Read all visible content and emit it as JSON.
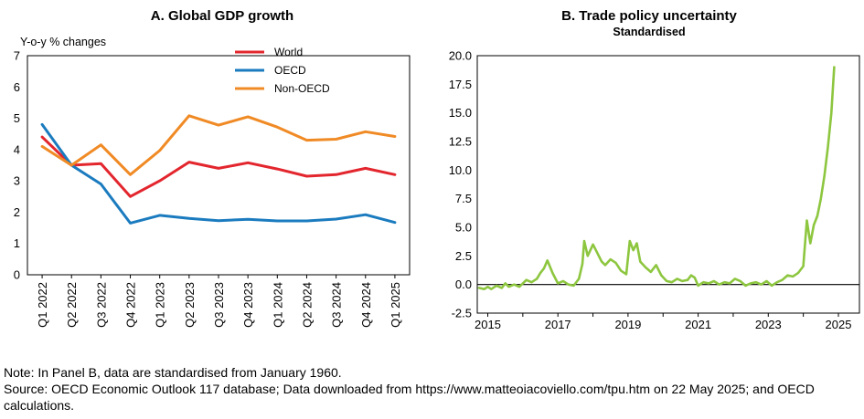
{
  "chart_data": [
    {
      "type": "line",
      "title": "A. Global GDP growth",
      "ylabel": "Y-o-y % changes",
      "ylim": [
        0,
        7
      ],
      "yticks": [
        "0",
        "1",
        "2",
        "3",
        "4",
        "5",
        "6",
        "7"
      ],
      "categories": [
        "Q1 2022",
        "Q2 2022",
        "Q3 2022",
        "Q4 2022",
        "Q1 2023",
        "Q2 2023",
        "Q3 2023",
        "Q4 2023",
        "Q1 2024",
        "Q2 2024",
        "Q3 2024",
        "Q4 2024",
        "Q1 2025"
      ],
      "legend_position": "top-center",
      "series": [
        {
          "name": "World",
          "color": "#E3262E",
          "values": [
            4.4,
            3.5,
            3.55,
            2.5,
            3.0,
            3.6,
            3.4,
            3.58,
            3.38,
            3.15,
            3.2,
            3.4,
            3.2
          ]
        },
        {
          "name": "OECD",
          "color": "#1B7BBF",
          "values": [
            4.8,
            3.5,
            2.9,
            1.65,
            1.9,
            1.8,
            1.73,
            1.77,
            1.72,
            1.72,
            1.78,
            1.92,
            1.67
          ]
        },
        {
          "name": "Non-OECD",
          "color": "#F08A25",
          "values": [
            4.1,
            3.5,
            4.15,
            3.2,
            3.97,
            5.08,
            4.78,
            5.05,
            4.72,
            4.3,
            4.33,
            4.57,
            4.42
          ]
        }
      ]
    },
    {
      "type": "line",
      "title": "B. Trade policy uncertainty",
      "subtitle": "Standardised",
      "ylim": [
        -2.5,
        20
      ],
      "yticks": [
        "-2.5",
        "0.0",
        "2.5",
        "5.0",
        "7.5",
        "10.0",
        "12.5",
        "15.0",
        "17.5",
        "20.0"
      ],
      "xlim": [
        2014.7,
        2025.6
      ],
      "xticks": [
        "2015",
        "2017",
        "2019",
        "2021",
        "2023",
        "2025"
      ],
      "series": [
        {
          "color": "#8DC63F",
          "x": [
            2014.75,
            2014.9,
            2015.0,
            2015.1,
            2015.25,
            2015.4,
            2015.5,
            2015.6,
            2015.75,
            2015.9,
            2016.0,
            2016.1,
            2016.25,
            2016.4,
            2016.5,
            2016.6,
            2016.7,
            2016.85,
            2017.0,
            2017.15,
            2017.3,
            2017.45,
            2017.6,
            2017.7,
            2017.75,
            2017.85,
            2018.0,
            2018.15,
            2018.25,
            2018.35,
            2018.5,
            2018.65,
            2018.8,
            2018.95,
            2019.05,
            2019.15,
            2019.25,
            2019.35,
            2019.5,
            2019.65,
            2019.8,
            2019.95,
            2020.1,
            2020.25,
            2020.4,
            2020.55,
            2020.7,
            2020.8,
            2020.9,
            2021.0,
            2021.15,
            2021.3,
            2021.45,
            2021.6,
            2021.75,
            2021.9,
            2022.05,
            2022.2,
            2022.35,
            2022.5,
            2022.65,
            2022.8,
            2022.95,
            2023.1,
            2023.25,
            2023.4,
            2023.55,
            2023.7,
            2023.85,
            2024.0,
            2024.1,
            2024.2,
            2024.3,
            2024.4,
            2024.5,
            2024.6,
            2024.7,
            2024.8,
            2024.88
          ],
          "values": [
            -0.3,
            -0.4,
            -0.2,
            -0.4,
            -0.1,
            -0.3,
            0.1,
            -0.2,
            0.0,
            -0.2,
            0.1,
            0.4,
            0.2,
            0.5,
            1.0,
            1.4,
            2.1,
            1.0,
            0.1,
            0.3,
            0.0,
            -0.1,
            0.5,
            1.8,
            3.8,
            2.5,
            3.5,
            2.6,
            2.0,
            1.7,
            2.2,
            1.9,
            1.2,
            0.9,
            3.8,
            3.0,
            3.6,
            2.0,
            1.5,
            1.1,
            1.7,
            0.8,
            0.3,
            0.2,
            0.5,
            0.3,
            0.4,
            0.8,
            0.6,
            -0.1,
            0.2,
            0.1,
            0.3,
            0.0,
            0.2,
            0.1,
            0.5,
            0.3,
            -0.1,
            0.1,
            0.2,
            0.0,
            0.3,
            -0.1,
            0.2,
            0.4,
            0.8,
            0.7,
            1.0,
            1.6,
            5.6,
            3.6,
            5.2,
            6.0,
            7.5,
            9.5,
            12.0,
            15.0,
            19.0
          ]
        }
      ]
    }
  ],
  "notes": {
    "note": "Note:  In Panel B, data are standardised from January 1960.",
    "source": "Source: OECD Economic Outlook 117 database; Data downloaded from https://www.matteoiacoviello.com/tpu.htm on 22 May 2025; and OECD calculations."
  }
}
